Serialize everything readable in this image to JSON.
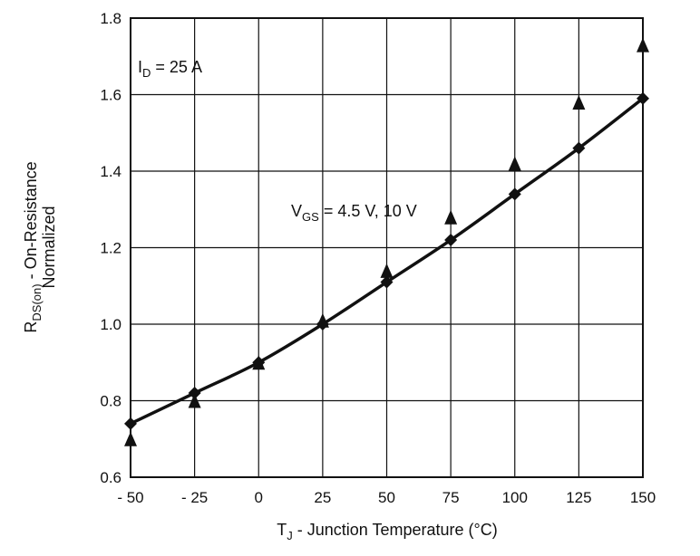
{
  "chart_data": {
    "type": "line",
    "xlabel": {
      "main": "T",
      "sub": "J",
      "rest": " - Junction Temperature (°C)"
    },
    "ylabel": {
      "main": "R",
      "sub": "DS(on)",
      "rest": " - On-Resistance",
      "line2": "Normalized"
    },
    "annotations": {
      "id": {
        "main": "I",
        "sub": "D",
        "rest": " = 25 A"
      },
      "vgs": {
        "main": "V",
        "sub": "GS",
        "rest": " = 4.5 V, 10 V"
      }
    },
    "xlim": [
      -50,
      150
    ],
    "ylim": [
      0.6,
      1.8
    ],
    "x_ticks": [
      -50,
      -25,
      0,
      25,
      50,
      75,
      100,
      125,
      150
    ],
    "x_tick_labels": [
      "- 50",
      "- 25",
      "0",
      "25",
      "50",
      "75",
      "100",
      "125",
      "150"
    ],
    "y_ticks": [
      0.6,
      0.8,
      1.0,
      1.2,
      1.4,
      1.6,
      1.8
    ],
    "y_tick_labels": [
      "0.6",
      "0.8",
      "1.0",
      "1.2",
      "1.4",
      "1.6",
      "1.8"
    ],
    "grid": true,
    "series": [
      {
        "marker": "diamond",
        "line": true,
        "x": [
          -50,
          -25,
          0,
          25,
          50,
          75,
          100,
          125,
          150
        ],
        "y": [
          0.74,
          0.82,
          0.9,
          1.0,
          1.11,
          1.22,
          1.34,
          1.46,
          1.59
        ]
      },
      {
        "marker": "triangle",
        "line": false,
        "x": [
          -50,
          -25,
          0,
          25,
          50,
          75,
          100,
          125,
          150
        ],
        "y": [
          0.7,
          0.8,
          0.9,
          1.01,
          1.14,
          1.28,
          1.42,
          1.58,
          1.73
        ]
      }
    ],
    "colors": {
      "line": "#111111",
      "grid": "#111111",
      "marker": "#111111"
    }
  }
}
